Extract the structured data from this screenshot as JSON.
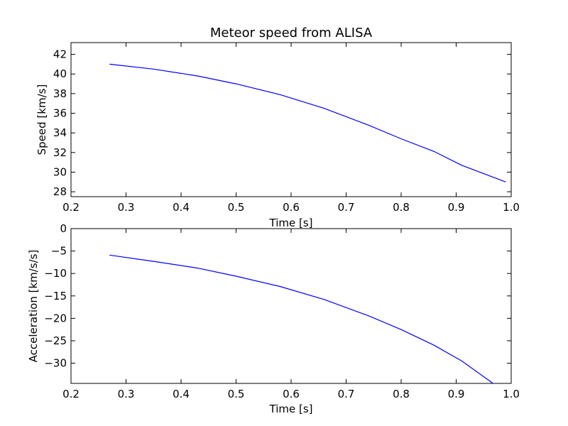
{
  "chart_data": [
    {
      "type": "line",
      "title": "Meteor speed from  ALISA",
      "xlabel": "Time [s]",
      "ylabel": "Speed [km/s]",
      "xlim": [
        0.2,
        1.0
      ],
      "ylim": [
        27.5,
        43.2
      ],
      "xticks": [
        "0.2",
        "0.3",
        "0.4",
        "0.5",
        "0.6",
        "0.7",
        "0.8",
        "0.9",
        "1.0"
      ],
      "yticks": [
        "28",
        "30",
        "32",
        "34",
        "36",
        "38",
        "40",
        "42"
      ],
      "grid": false,
      "line_color": "#0000ff",
      "series": [
        {
          "x": [
            0.27,
            0.35,
            0.43,
            0.5,
            0.58,
            0.66,
            0.74,
            0.8,
            0.86,
            0.91,
            0.99
          ],
          "y": [
            41.0,
            40.5,
            39.8,
            39.0,
            37.9,
            36.5,
            34.8,
            33.4,
            32.1,
            30.7,
            29.0
          ]
        }
      ]
    },
    {
      "type": "line",
      "title": "",
      "xlabel": "Time [s]",
      "ylabel": "Acceleration [km/s/s]",
      "xlim": [
        0.2,
        1.0
      ],
      "ylim": [
        -34.5,
        0
      ],
      "xticks": [
        "0.2",
        "0.3",
        "0.4",
        "0.5",
        "0.6",
        "0.7",
        "0.8",
        "0.9",
        "1.0"
      ],
      "yticks": [
        "0",
        "−5",
        "−10",
        "−15",
        "−20",
        "−25",
        "−30"
      ],
      "grid": false,
      "line_color": "#0000ff",
      "series": [
        {
          "x": [
            0.27,
            0.35,
            0.43,
            0.5,
            0.58,
            0.66,
            0.74,
            0.8,
            0.86,
            0.91,
            0.967
          ],
          "y": [
            -5.9,
            -7.3,
            -8.8,
            -10.6,
            -12.9,
            -15.8,
            -19.4,
            -22.5,
            -26.0,
            -29.5,
            -34.5
          ]
        }
      ]
    }
  ]
}
